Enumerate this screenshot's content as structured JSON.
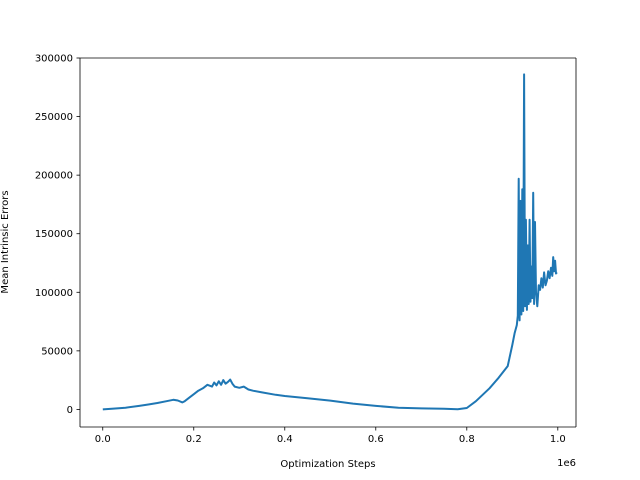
{
  "chart_data": {
    "type": "line",
    "title": "",
    "xlabel": "Optimization Steps",
    "ylabel": "Mean Intrinsic Errors",
    "x_offset_label": "1e6",
    "xlim": [
      -0.05,
      1.04
    ],
    "ylim": [
      -15000,
      300000
    ],
    "x_ticks": [
      0.0,
      0.2,
      0.4,
      0.6,
      0.8,
      1.0
    ],
    "x_tick_labels": [
      "0.0",
      "0.2",
      "0.4",
      "0.6",
      "0.8",
      "1.0"
    ],
    "y_ticks": [
      0,
      50000,
      100000,
      150000,
      200000,
      250000,
      300000
    ],
    "y_tick_labels": [
      "0",
      "50000",
      "100000",
      "150000",
      "200000",
      "250000",
      "300000"
    ],
    "grid": false,
    "legend": "none",
    "series": [
      {
        "color": "#1f77b4",
        "x": [
          0.0,
          0.02,
          0.05,
          0.08,
          0.1,
          0.12,
          0.14,
          0.155,
          0.165,
          0.175,
          0.18,
          0.19,
          0.2,
          0.21,
          0.22,
          0.23,
          0.24,
          0.245,
          0.25,
          0.255,
          0.26,
          0.265,
          0.27,
          0.275,
          0.28,
          0.285,
          0.29,
          0.3,
          0.31,
          0.32,
          0.33,
          0.35,
          0.38,
          0.4,
          0.45,
          0.5,
          0.55,
          0.6,
          0.65,
          0.7,
          0.75,
          0.78,
          0.8,
          0.82,
          0.85,
          0.87,
          0.89,
          0.9,
          0.905,
          0.91,
          0.912,
          0.914,
          0.916,
          0.918,
          0.92,
          0.922,
          0.924,
          0.926,
          0.928,
          0.93,
          0.932,
          0.934,
          0.936,
          0.938,
          0.94,
          0.942,
          0.944,
          0.946,
          0.948,
          0.95,
          0.952,
          0.955,
          0.958,
          0.961,
          0.964,
          0.967,
          0.97,
          0.973,
          0.976,
          0.979,
          0.982,
          0.985,
          0.988,
          0.99,
          0.992,
          0.994,
          0.996,
          0.998
        ],
        "y": [
          0,
          600,
          1500,
          3000,
          4200,
          5500,
          7000,
          8200,
          7600,
          6000,
          7000,
          10000,
          13000,
          16000,
          18000,
          21000,
          19500,
          23000,
          20500,
          24000,
          21000,
          25000,
          22000,
          23500,
          25500,
          22000,
          19500,
          18500,
          19500,
          17000,
          16000,
          14500,
          12500,
          11500,
          9500,
          7500,
          5000,
          3000,
          1500,
          900,
          500,
          200,
          1200,
          7000,
          18000,
          27000,
          37000,
          55000,
          65000,
          72000,
          80000,
          197000,
          76000,
          178000,
          81000,
          188000,
          84000,
          286000,
          88000,
          162000,
          85000,
          140000,
          90000,
          162000,
          92000,
          122000,
          95000,
          185000,
          90000,
          160000,
          100000,
          88000,
          106000,
          102000,
          112000,
          104000,
          117000,
          106000,
          110000,
          118000,
          112000,
          121000,
          114000,
          130000,
          118000,
          127000,
          116000,
          117000
        ]
      }
    ]
  }
}
